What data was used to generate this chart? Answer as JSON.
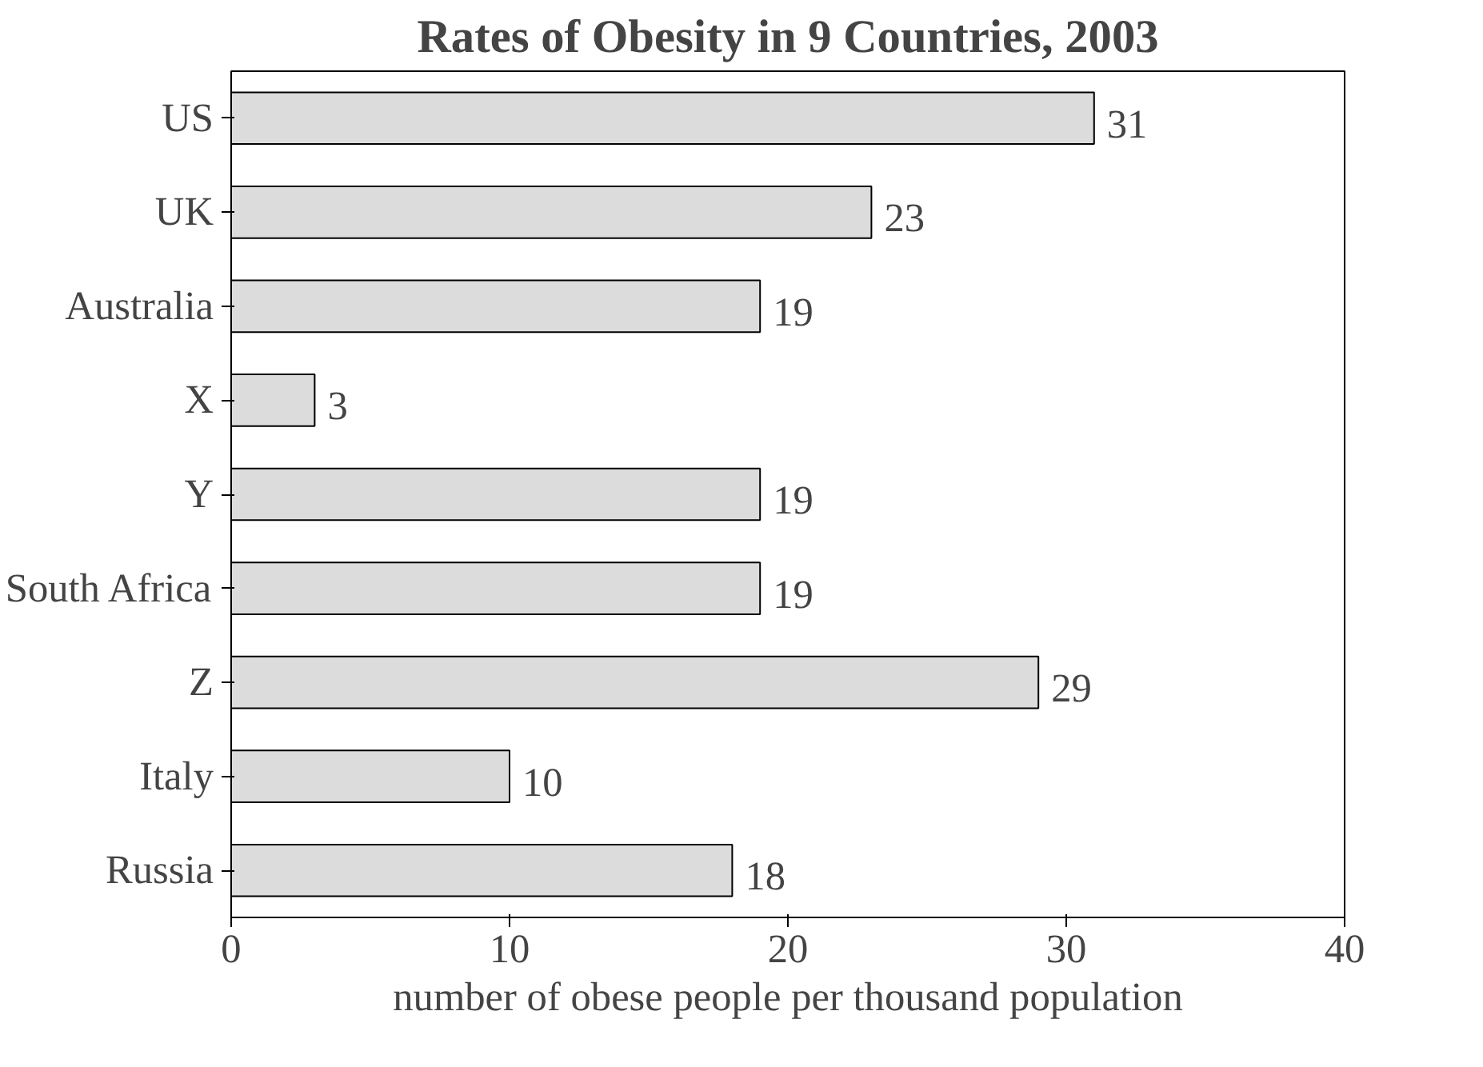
{
  "chart_data": {
    "type": "bar",
    "orientation": "horizontal",
    "title": "Rates of Obesity in 9 Countries, 2003",
    "xlabel": "number of obese people per thousand population",
    "categories": [
      "US",
      "UK",
      "Australia",
      "X",
      "Y",
      "South Africa",
      "Z",
      "Italy",
      "Russia"
    ],
    "values": [
      31,
      23,
      19,
      3,
      19,
      19,
      29,
      10,
      18
    ],
    "color": "#dcdcdc",
    "xlim": [
      0,
      40
    ],
    "xticks": [
      0,
      10,
      20,
      30,
      40
    ],
    "data_labels": true
  }
}
